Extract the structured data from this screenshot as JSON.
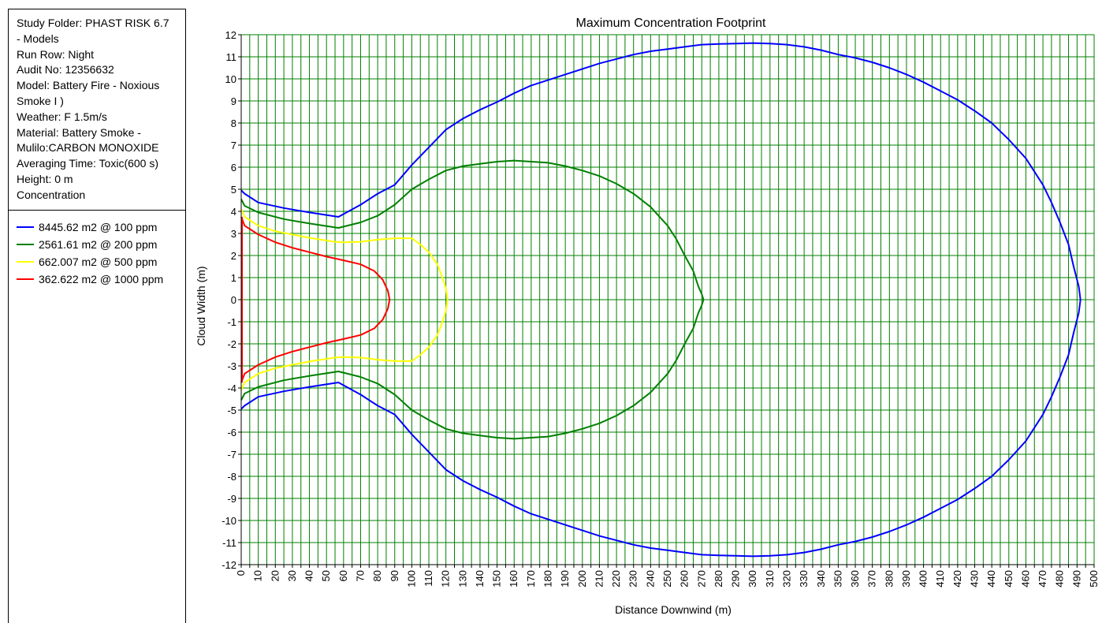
{
  "info": {
    "lines": [
      "Study Folder: PHAST RISK 6.7",
      "- Models",
      "Run Row: Night",
      "Audit No: 12356632",
      "Model: Battery Fire - Noxious",
      "Smoke I      )",
      "Weather: F 1.5m/s",
      "Material: Battery Smoke -",
      "Mulilo:CARBON MONOXIDE",
      "Averaging Time: Toxic(600 s)",
      "Height: 0 m",
      "Concentration"
    ]
  },
  "chart_data": {
    "type": "line",
    "title": "Maximum Concentration Footprint",
    "xlabel": "Distance Downwind (m)",
    "ylabel": "Cloud Width (m)",
    "xlim": [
      0,
      500
    ],
    "ylim": [
      -12,
      12
    ],
    "x_tick_step": 5,
    "x_label_step": 10,
    "y_tick_step": 1,
    "grid": true,
    "grid_color": "#008000",
    "legend_position": "left-panel",
    "series": [
      {
        "name": "8445.62 m2 @ 100 ppm",
        "color": "#0000ff",
        "x": [
          0,
          2,
          10,
          25,
          40,
          57,
          70,
          80,
          90,
          100,
          110,
          120,
          130,
          140,
          150,
          160,
          170,
          180,
          190,
          200,
          210,
          220,
          230,
          240,
          250,
          260,
          270,
          280,
          290,
          300,
          310,
          320,
          330,
          340,
          350,
          360,
          370,
          380,
          390,
          400,
          410,
          420,
          430,
          440,
          450,
          460,
          470,
          475,
          480,
          485,
          488,
          491,
          492
        ],
        "y": [
          4.95,
          4.8,
          4.4,
          4.15,
          3.95,
          3.75,
          4.3,
          4.8,
          5.2,
          6.1,
          6.9,
          7.7,
          8.2,
          8.6,
          8.95,
          9.35,
          9.7,
          9.95,
          10.2,
          10.45,
          10.7,
          10.9,
          11.1,
          11.25,
          11.35,
          11.45,
          11.55,
          11.58,
          11.6,
          11.62,
          11.6,
          11.55,
          11.45,
          11.3,
          11.1,
          10.95,
          10.75,
          10.5,
          10.2,
          9.85,
          9.45,
          9.05,
          8.55,
          8.0,
          7.25,
          6.4,
          5.2,
          4.4,
          3.5,
          2.5,
          1.5,
          0.6,
          0
        ]
      },
      {
        "name": "2561.61 m2 @ 200 ppm",
        "color": "#008000",
        "x": [
          0,
          2,
          10,
          25,
          40,
          57,
          70,
          80,
          90,
          100,
          110,
          120,
          130,
          140,
          150,
          160,
          170,
          180,
          190,
          200,
          210,
          220,
          230,
          240,
          250,
          255,
          260,
          265,
          268,
          270,
          271
        ],
        "y": [
          4.55,
          4.25,
          3.95,
          3.65,
          3.45,
          3.25,
          3.5,
          3.8,
          4.3,
          5.0,
          5.45,
          5.85,
          6.05,
          6.15,
          6.25,
          6.3,
          6.25,
          6.2,
          6.05,
          5.85,
          5.6,
          5.25,
          4.8,
          4.2,
          3.35,
          2.75,
          2.0,
          1.3,
          0.6,
          0.25,
          0
        ]
      },
      {
        "name": "662.007 m2 @ 500 ppm",
        "color": "#ffff00",
        "x": [
          0,
          2,
          10,
          20,
          30,
          40,
          55,
          60,
          70,
          80,
          90,
          100,
          105,
          110,
          115,
          118,
          120,
          121
        ],
        "y": [
          4.1,
          3.75,
          3.35,
          3.1,
          2.95,
          2.8,
          2.62,
          2.6,
          2.62,
          2.72,
          2.78,
          2.78,
          2.5,
          2.15,
          1.6,
          1.0,
          0.5,
          0
        ]
      },
      {
        "name": "362.622 m2 @ 1000 ppm",
        "color": "#ff0000",
        "x": [
          0,
          2,
          10,
          20,
          30,
          40,
          50,
          60,
          70,
          78,
          83,
          86,
          87
        ],
        "y": [
          3.75,
          3.35,
          2.95,
          2.6,
          2.35,
          2.15,
          1.95,
          1.78,
          1.6,
          1.3,
          0.9,
          0.4,
          0
        ]
      }
    ],
    "closing_edge": {
      "x": 0,
      "from_y": -3.75,
      "to_y": 3.75,
      "color": "#ff0000"
    },
    "symmetric_about_zero": true
  }
}
